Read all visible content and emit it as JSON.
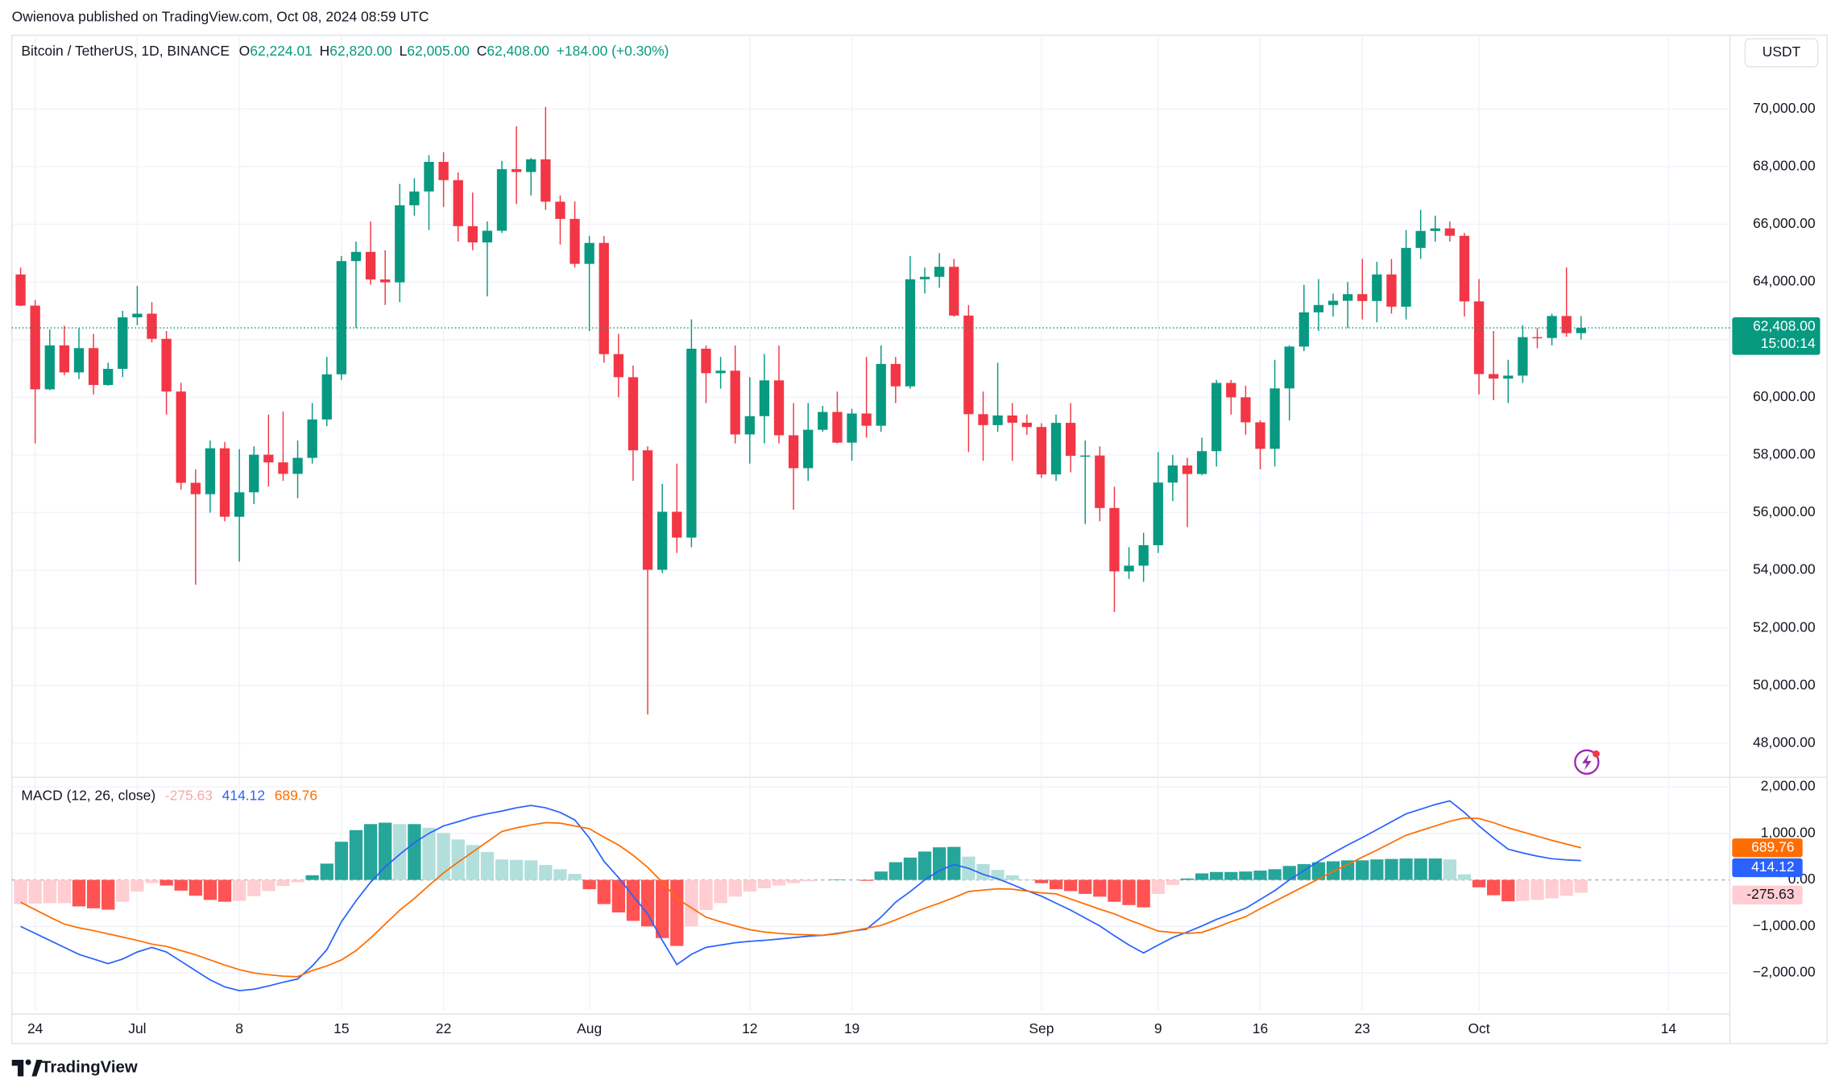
{
  "header": {
    "published": "Owienova published on TradingView.com, Oct 08, 2024 08:59 UTC"
  },
  "chart_data": [
    {
      "type": "candlestick",
      "title": "Bitcoin / TetherUS, 1D, BINANCE",
      "legend_fields": [
        {
          "key": "O",
          "label": "62,224.01"
        },
        {
          "key": "H",
          "label": "62,820.00"
        },
        {
          "key": "L",
          "label": "62,005.00"
        },
        {
          "key": "C",
          "label": "62,408.00"
        }
      ],
      "change_label": "+184.00 (+0.30%)",
      "currency": "USDT",
      "last_price_label": "62,408.00",
      "countdown": "15:00:14",
      "up_color": "#089981",
      "down_color": "#f23645",
      "grid": true,
      "open": [
        64260,
        63180,
        60277,
        61800,
        60864,
        61706,
        60427,
        60986,
        62772,
        62900,
        62029,
        60200,
        57034,
        56639,
        58231,
        55857,
        56705,
        58009,
        57742,
        57344,
        57899,
        59231,
        60797,
        64724,
        65043,
        64087,
        63987,
        66660,
        67139,
        68165,
        67532,
        65936,
        65372,
        65777,
        67912,
        67813,
        68255,
        66784,
        66188,
        64628,
        65354,
        61498,
        60697,
        58161,
        54018,
        56030,
        55134,
        61685,
        60837,
        60923,
        58712,
        59346,
        60587,
        58683,
        57541,
        58874,
        59491,
        58427,
        59438,
        59013,
        61157,
        60381,
        64094,
        64178,
        64526,
        62834,
        59415,
        59035,
        59370,
        59119,
        58969,
        57325,
        59113,
        57971,
        57980,
        56160,
        53962,
        54160,
        54869,
        57042,
        57635,
        57339,
        58132,
        60498,
        60000,
        59132,
        58213,
        60309,
        61759,
        62947,
        63200,
        63348,
        63578,
        63339,
        64262,
        63143,
        65181,
        65769,
        65858,
        65602,
        63327,
        60805,
        60649,
        60752,
        62086,
        62058,
        62819,
        62224.01
      ],
      "high": [
        64500,
        63370,
        62350,
        62480,
        62400,
        62200,
        61200,
        63000,
        63860,
        63300,
        62300,
        60500,
        57500,
        58500,
        58450,
        58200,
        58300,
        59400,
        59500,
        58500,
        59800,
        61400,
        64900,
        65400,
        66100,
        65100,
        67400,
        67600,
        68400,
        68500,
        67800,
        67100,
        66100,
        68200,
        69400,
        68300,
        70070,
        67000,
        66800,
        65600,
        65600,
        62200,
        61100,
        58300,
        57000,
        57700,
        62700,
        61800,
        61400,
        61800,
        60700,
        61500,
        61800,
        59800,
        59800,
        59700,
        60200,
        59600,
        61400,
        61800,
        61400,
        64900,
        64500,
        65000,
        64800,
        63200,
        60200,
        61200,
        59800,
        59400,
        59100,
        59400,
        59800,
        58500,
        58300,
        56900,
        54800,
        55300,
        58100,
        58000,
        57900,
        58600,
        60600,
        60600,
        60400,
        59200,
        61300,
        61800,
        63900,
        64100,
        63600,
        64000,
        64800,
        64700,
        64800,
        65800,
        66500,
        66300,
        66100,
        65700,
        64100,
        62300,
        61300,
        62500,
        62400,
        62900,
        64500,
        62820
      ],
      "low": [
        63160,
        58400,
        60250,
        60770,
        60630,
        60100,
        60400,
        60700,
        62500,
        61900,
        59400,
        56800,
        53500,
        56000,
        55700,
        54300,
        56300,
        56900,
        57100,
        56500,
        57700,
        59000,
        60600,
        62400,
        63900,
        63200,
        63300,
        66300,
        65800,
        66600,
        65400,
        65100,
        63500,
        65700,
        66700,
        67000,
        66500,
        65300,
        64500,
        62300,
        61200,
        60000,
        57100,
        49000,
        53900,
        54600,
        54800,
        59800,
        60300,
        58400,
        57700,
        58400,
        58400,
        56100,
        57100,
        58800,
        58400,
        57800,
        58600,
        58800,
        59800,
        60300,
        63600,
        63800,
        62800,
        58100,
        57800,
        58800,
        57800,
        58700,
        57200,
        57100,
        57400,
        55600,
        55700,
        52550,
        53700,
        53600,
        54600,
        56400,
        55500,
        57300,
        57600,
        59400,
        58700,
        57500,
        57600,
        59200,
        61600,
        62300,
        62800,
        62400,
        62700,
        62600,
        62900,
        62700,
        64800,
        65400,
        65400,
        62800,
        60100,
        59900,
        59800,
        60500,
        61700,
        61800,
        62100,
        62005
      ],
      "close": [
        63180,
        60277,
        61800,
        60864,
        61706,
        60427,
        60986,
        62772,
        62900,
        62029,
        60200,
        57034,
        56639,
        58231,
        55857,
        56705,
        58009,
        57742,
        57344,
        57899,
        59231,
        60797,
        64724,
        65043,
        64087,
        63987,
        66660,
        67139,
        68165,
        67532,
        65936,
        65372,
        65777,
        67912,
        67813,
        68255,
        66784,
        66188,
        64628,
        65354,
        61498,
        60697,
        58161,
        54018,
        56030,
        55134,
        61685,
        60837,
        60923,
        58712,
        59346,
        60587,
        58683,
        57541,
        58874,
        59491,
        58427,
        59438,
        59013,
        61157,
        60381,
        64094,
        64178,
        64526,
        62834,
        59415,
        59035,
        59370,
        59119,
        58969,
        57325,
        59113,
        57971,
        57980,
        56160,
        53962,
        54160,
        54869,
        57042,
        57635,
        57339,
        58132,
        60498,
        60000,
        59132,
        58213,
        60309,
        61759,
        62947,
        63200,
        63348,
        63578,
        63339,
        64262,
        63143,
        65181,
        65769,
        65858,
        65602,
        63327,
        60805,
        60649,
        60752,
        62086,
        62058,
        62819,
        62224,
        62408
      ],
      "xlim": [
        -0.6,
        117.2
      ],
      "xticks": [
        {
          "value": 1,
          "label": "24"
        },
        {
          "value": 8,
          "label": "Jul"
        },
        {
          "value": 15,
          "label": "8"
        },
        {
          "value": 22,
          "label": "15"
        },
        {
          "value": 29,
          "label": "22"
        },
        {
          "value": 39,
          "label": "Aug"
        },
        {
          "value": 50,
          "label": "12"
        },
        {
          "value": 57,
          "label": "19"
        },
        {
          "value": 70,
          "label": "Sep"
        },
        {
          "value": 78,
          "label": "9"
        },
        {
          "value": 85,
          "label": "16"
        },
        {
          "value": 92,
          "label": "23"
        },
        {
          "value": 100,
          "label": "Oct"
        },
        {
          "value": 113,
          "label": "14"
        }
      ],
      "ylim": [
        46860,
        72560
      ],
      "yticks": [
        {
          "value": 48000,
          "label": "48,000.00"
        },
        {
          "value": 50000,
          "label": "50,000.00"
        },
        {
          "value": 52000,
          "label": "52,000.00"
        },
        {
          "value": 54000,
          "label": "54,000.00"
        },
        {
          "value": 56000,
          "label": "56,000.00"
        },
        {
          "value": 58000,
          "label": "58,000.00"
        },
        {
          "value": 60000,
          "label": "60,000.00"
        },
        {
          "value": 62000,
          "label": "62,000.00"
        },
        {
          "value": 64000,
          "label": "64,000.00"
        },
        {
          "value": 66000,
          "label": "66,000.00"
        },
        {
          "value": 68000,
          "label": "68,000.00"
        },
        {
          "value": 70000,
          "label": "70,000.00"
        }
      ]
    },
    {
      "type": "macd",
      "title": "MACD (12, 26, close)",
      "ylim": [
        -2810,
        2180
      ],
      "yticks": [
        {
          "value": 2000,
          "label": "2,000.00"
        },
        {
          "value": 1000,
          "label": "1,000.00"
        },
        {
          "value": 0,
          "label": "0.00"
        },
        {
          "value": -1000,
          "label": "−1,000.00"
        },
        {
          "value": -2000,
          "label": "−2,000.00"
        }
      ],
      "histogram": {
        "legend_color": "#f7a9a7",
        "colors": {
          "grow_above": "#26a69a",
          "fall_above": "#b2dfdb",
          "grow_below": "#ffcdd2",
          "fall_below": "#ff5252"
        },
        "values": [
          -520,
          -510,
          -500,
          -500,
          -570,
          -610,
          -640,
          -470,
          -250,
          -70,
          -120,
          -230,
          -340,
          -430,
          -470,
          -450,
          -350,
          -240,
          -130,
          -50,
          100,
          350,
          820,
          1070,
          1200,
          1230,
          1200,
          1200,
          1120,
          1010,
          870,
          750,
          600,
          440,
          430,
          420,
          320,
          230,
          130,
          -200,
          -520,
          -700,
          -880,
          -1000,
          -1250,
          -1420,
          -1000,
          -650,
          -500,
          -360,
          -250,
          -180,
          -120,
          -70,
          -30,
          0,
          10,
          0,
          -20,
          180,
          380,
          480,
          610,
          700,
          710,
          500,
          340,
          215,
          100,
          10,
          -70,
          -200,
          -240,
          -300,
          -360,
          -470,
          -540,
          -590,
          -300,
          -110,
          30,
          140,
          170,
          170,
          180,
          200,
          230,
          300,
          340,
          380,
          400,
          420,
          420,
          440,
          450,
          460,
          460,
          460,
          440,
          120,
          -160,
          -330,
          -460,
          -450,
          -430,
          -395,
          -340,
          -275.63
        ]
      },
      "macd": {
        "color": "#2962ff",
        "values": [
          -1000,
          -1150,
          -1300,
          -1450,
          -1600,
          -1700,
          -1800,
          -1700,
          -1550,
          -1450,
          -1550,
          -1750,
          -1950,
          -2150,
          -2300,
          -2380,
          -2350,
          -2280,
          -2200,
          -2130,
          -1850,
          -1500,
          -900,
          -450,
          -50,
          280,
          550,
          800,
          1000,
          1160,
          1250,
          1350,
          1420,
          1480,
          1550,
          1600,
          1550,
          1450,
          1290,
          900,
          400,
          50,
          -350,
          -730,
          -1300,
          -1820,
          -1600,
          -1450,
          -1400,
          -1350,
          -1320,
          -1300,
          -1270,
          -1240,
          -1210,
          -1190,
          -1150,
          -1100,
          -1060,
          -800,
          -480,
          -250,
          0,
          200,
          330,
          250,
          120,
          25,
          -100,
          -230,
          -350,
          -500,
          -650,
          -820,
          -990,
          -1200,
          -1400,
          -1570,
          -1400,
          -1240,
          -1120,
          -990,
          -850,
          -730,
          -610,
          -420,
          -230,
          0,
          200,
          400,
          580,
          750,
          910,
          1080,
          1250,
          1420,
          1520,
          1620,
          1700,
          1450,
          1160,
          900,
          660,
          580,
          510,
          455,
          430,
          414.12
        ]
      },
      "signal": {
        "color": "#ff6d00",
        "values": [
          -480,
          -640,
          -800,
          -950,
          -1030,
          -1090,
          -1160,
          -1230,
          -1300,
          -1380,
          -1430,
          -1520,
          -1610,
          -1720,
          -1830,
          -1930,
          -2000,
          -2040,
          -2070,
          -2080,
          -1950,
          -1850,
          -1720,
          -1520,
          -1250,
          -950,
          -650,
          -400,
          -120,
          150,
          380,
          600,
          820,
          1040,
          1120,
          1180,
          1230,
          1220,
          1160,
          1100,
          920,
          750,
          530,
          270,
          -50,
          -400,
          -600,
          -800,
          -900,
          -990,
          -1070,
          -1120,
          -1150,
          -1170,
          -1180,
          -1190,
          -1160,
          -1100,
          -1040,
          -980,
          -860,
          -730,
          -610,
          -500,
          -380,
          -250,
          -220,
          -190,
          -200,
          -240,
          -280,
          -300,
          -410,
          -520,
          -630,
          -730,
          -860,
          -980,
          -1100,
          -1130,
          -1150,
          -1130,
          -1020,
          -900,
          -790,
          -620,
          -460,
          -300,
          -140,
          20,
          180,
          330,
          490,
          640,
          800,
          960,
          1060,
          1160,
          1260,
          1330,
          1320,
          1230,
          1120,
          1030,
          940,
          850,
          770,
          689.76
        ]
      }
    }
  ],
  "footer": {
    "brand": "TradingView"
  }
}
